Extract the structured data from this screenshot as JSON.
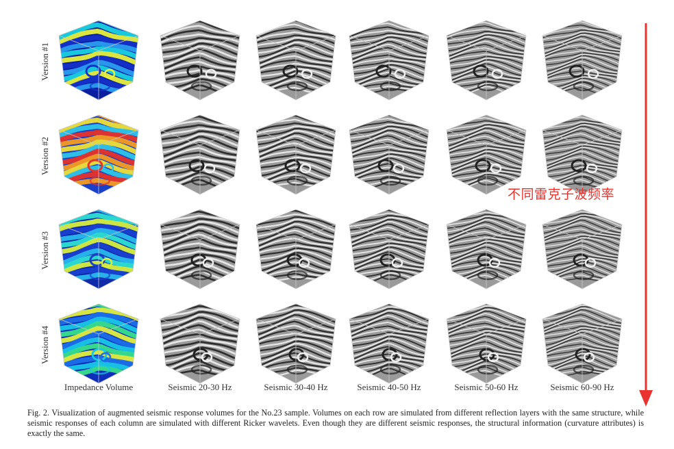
{
  "figure": {
    "rows": [
      {
        "label": "Version #1",
        "impedance_palette": [
          "#1530c8",
          "#2a9df0",
          "#19d3e0",
          "#e7f03a",
          "#0a1ea0"
        ]
      },
      {
        "label": "Version #2",
        "impedance_palette": [
          "#e8322a",
          "#f59b20",
          "#f0e035",
          "#2ec4e8",
          "#1a3fc8"
        ]
      },
      {
        "label": "Version #3",
        "impedance_palette": [
          "#1a40d0",
          "#28b8ee",
          "#2de0d0",
          "#d8ef3d",
          "#0e2aa8"
        ]
      },
      {
        "label": "Version #4",
        "impedance_palette": [
          "#19c7e6",
          "#38e08a",
          "#e2ef3a",
          "#1e6fe8",
          "#0e2db8"
        ]
      }
    ],
    "columns": [
      "Impedance Volume",
      "Seismic 20-30 Hz",
      "Seismic 30-40 Hz",
      "Seismic 40-50 Hz",
      "Seismic 50-60 Hz",
      "Seismic 60-90 Hz"
    ],
    "annotation": "不同雷克子波频率",
    "arrow_color": "#e8332e"
  },
  "caption": "Fig. 2.   Visualization of augmented seismic response volumes for the No.23 sample. Volumes on each row are simulated from different reflection layers with the same structure, while seismic responses of each column are simulated with different Ricker wavelets. Even though they are different seismic responses, the structural information (curvature attributes) is exactly the same."
}
